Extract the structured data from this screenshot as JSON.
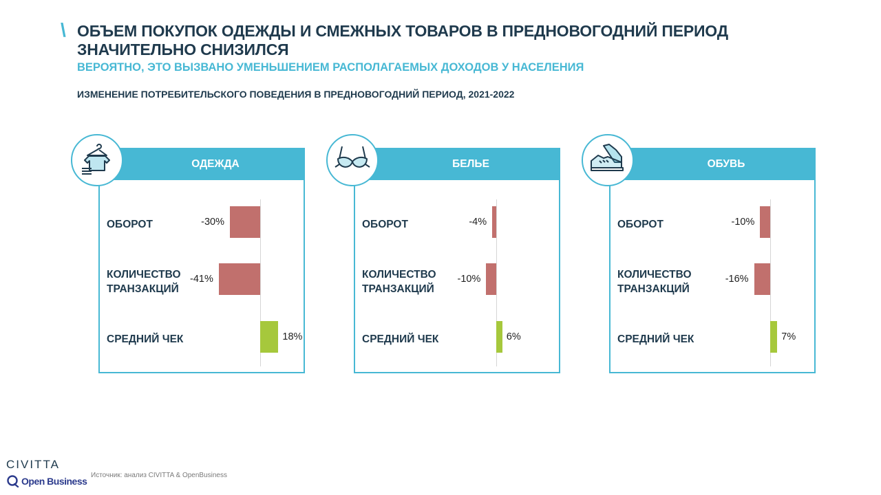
{
  "header": {
    "slash": "\\",
    "title": "ОБЪЕМ ПОКУПОК ОДЕЖДЫ И СМЕЖНЫХ ТОВАРОВ В ПРЕДНОВОГОДНИЙ ПЕРИОД ЗНАЧИТЕЛЬНО СНИЗИЛСЯ",
    "subtitle": "ВЕРОЯТНО, ЭТО ВЫЗВАНО УМЕНЬШЕНИЕМ РАСПОЛАГАЕМЫХ ДОХОДОВ У НАСЕЛЕНИЯ"
  },
  "colors": {
    "accent": "#47b8d4",
    "dark_text": "#1f3a4d",
    "negative": "#c1706d",
    "positive": "#a6c83c"
  },
  "chart_data": {
    "type": "bar",
    "orientation": "horizontal",
    "title": "ИЗМЕНЕНИЕ ПОТРЕБИТЕЛЬСКОГО ПОВЕДЕНИЯ В ПРЕДНОВОГОДНИЙ ПЕРИОД, 2021-2022",
    "categories": [
      "ОБОРОТ",
      "КОЛИЧЕСТВО ТРАНЗАКЦИЙ",
      "СРЕДНИЙ ЧЕК"
    ],
    "category_lines": [
      [
        "ОБОРОТ"
      ],
      [
        "КОЛИЧЕСТВО",
        "ТРАНЗАКЦИЙ"
      ],
      [
        "СРЕДНИЙ ЧЕК"
      ]
    ],
    "unit": "%",
    "xlim": [
      -41,
      18
    ],
    "series": [
      {
        "name": "ОДЕЖДА",
        "icon": "clothes-hanger-icon",
        "values": [
          -30,
          -41,
          18
        ],
        "labels": [
          "-30%",
          "-41%",
          "18%"
        ]
      },
      {
        "name": "БЕЛЬЕ",
        "icon": "bra-icon",
        "values": [
          -4,
          -10,
          6
        ],
        "labels": [
          "-4%",
          "-10%",
          "6%"
        ]
      },
      {
        "name": "ОБУВЬ",
        "icon": "sneaker-icon",
        "values": [
          -10,
          -16,
          7
        ],
        "labels": [
          "-10%",
          "-16%",
          "7%"
        ]
      }
    ]
  },
  "footer": {
    "logo_civitta": "CIVITTA",
    "logo_openbusiness": "Open Business",
    "source": "Источник: анализ CIVITTA & OpenBusiness"
  }
}
